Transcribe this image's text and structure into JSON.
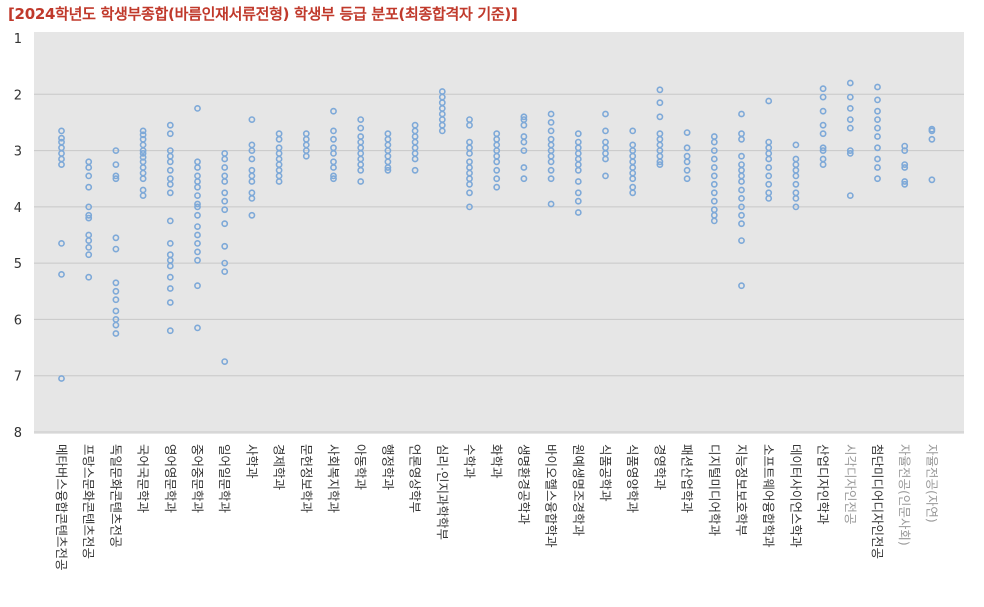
{
  "chart_data": {
    "type": "scatter",
    "title": "[2024학년도 학생부종합(바름인재서류전형) 학생부 등급 분포(최종합격자 기준)]",
    "ylim": [
      1,
      8
    ],
    "y_ticks": [
      "1",
      "2",
      "3",
      "4",
      "5",
      "6",
      "7",
      "8"
    ],
    "y_inverted": true,
    "grid": true,
    "colors": {
      "point": "#7ea9d8",
      "plot_bg": "#e6e6e6",
      "grid": "#c8c8c8",
      "title": "#c0392b",
      "label": "#333333",
      "label_muted": "#999999"
    },
    "categories": [
      "메타버스융합콘텐츠전공",
      "프랑스문화콘텐츠전공",
      "독일문화콘텐츠전공",
      "국어국문학과",
      "영어영문학과",
      "중어중문학과",
      "일어일문학과",
      "사학과",
      "경제학과",
      "문헌정보학과",
      "사회복지학과",
      "아동학과",
      "행정학과",
      "언론영상학부",
      "심리·인지과학학부",
      "수학과",
      "화학과",
      "생명환경공학과",
      "바이오헬스융합학과",
      "원예생명조경학과",
      "식품공학과",
      "식품영양학과",
      "경영학과",
      "패션산업학과",
      "디지털미디어학과",
      "지능정보보호학부",
      "소프트웨어융합학과",
      "데이터사이언스학과",
      "산업디자인학과",
      "시각디자인전공",
      "첨단미디어디자인전공",
      "자율전공(인문사회)",
      "자율전공(자연)"
    ],
    "muted_categories": [
      29,
      31,
      32
    ],
    "values": [
      [
        2.65,
        2.78,
        2.85,
        2.95,
        3.05,
        3.15,
        3.25,
        4.65,
        5.2,
        7.05
      ],
      [
        3.2,
        3.3,
        3.45,
        3.65,
        4.0,
        4.15,
        4.2,
        4.5,
        4.6,
        4.72,
        4.85,
        5.25
      ],
      [
        3.0,
        3.25,
        3.45,
        3.5,
        4.55,
        4.75,
        5.35,
        5.5,
        5.65,
        5.85,
        6.0,
        6.1,
        6.25
      ],
      [
        2.65,
        2.72,
        2.8,
        2.9,
        3.0,
        3.05,
        3.12,
        3.2,
        3.3,
        3.4,
        3.5,
        3.7,
        3.8
      ],
      [
        2.55,
        2.7,
        3.0,
        3.1,
        3.2,
        3.35,
        3.5,
        3.6,
        3.75,
        4.25,
        4.65,
        4.85,
        4.95,
        5.05,
        5.25,
        5.45,
        5.7,
        6.2
      ],
      [
        2.25,
        3.2,
        3.3,
        3.45,
        3.55,
        3.65,
        3.8,
        3.95,
        4.0,
        4.15,
        4.35,
        4.5,
        4.65,
        4.8,
        4.95,
        5.4,
        6.15
      ],
      [
        3.05,
        3.15,
        3.3,
        3.45,
        3.55,
        3.75,
        3.9,
        4.05,
        4.3,
        4.7,
        5.0,
        5.15,
        6.75
      ],
      [
        2.45,
        2.9,
        3.0,
        3.15,
        3.35,
        3.45,
        3.55,
        3.75,
        3.85,
        4.15
      ],
      [
        2.7,
        2.8,
        2.95,
        3.05,
        3.15,
        3.25,
        3.35,
        3.45,
        3.55
      ],
      [
        2.7,
        2.8,
        2.9,
        3.0,
        3.1
      ],
      [
        2.3,
        2.65,
        2.8,
        2.95,
        3.05,
        3.2,
        3.3,
        3.45,
        3.5
      ],
      [
        2.45,
        2.6,
        2.75,
        2.85,
        2.95,
        3.05,
        3.15,
        3.25,
        3.35,
        3.55
      ],
      [
        2.7,
        2.8,
        2.9,
        3.0,
        3.1,
        3.2,
        3.3,
        3.35
      ],
      [
        2.55,
        2.65,
        2.75,
        2.85,
        2.95,
        3.05,
        3.15,
        3.35
      ],
      [
        1.95,
        2.05,
        2.15,
        2.25,
        2.35,
        2.45,
        2.55,
        2.65
      ],
      [
        2.45,
        2.55,
        2.85,
        2.95,
        3.05,
        3.2,
        3.3,
        3.4,
        3.5,
        3.6,
        3.75,
        4.0
      ],
      [
        2.7,
        2.8,
        2.9,
        3.0,
        3.1,
        3.2,
        3.35,
        3.5,
        3.65
      ],
      [
        2.4,
        2.45,
        2.55,
        2.75,
        2.85,
        3.0,
        3.3,
        3.5
      ],
      [
        2.35,
        2.5,
        2.65,
        2.8,
        2.9,
        3.0,
        3.1,
        3.2,
        3.35,
        3.5,
        3.95
      ],
      [
        2.7,
        2.85,
        2.95,
        3.05,
        3.15,
        3.25,
        3.35,
        3.55,
        3.75,
        3.9,
        4.1
      ],
      [
        2.35,
        2.65,
        2.85,
        2.95,
        3.05,
        3.15,
        3.45
      ],
      [
        2.65,
        2.9,
        3.0,
        3.1,
        3.2,
        3.3,
        3.4,
        3.5,
        3.65,
        3.75
      ],
      [
        1.92,
        2.15,
        2.4,
        2.7,
        2.8,
        2.9,
        3.0,
        3.1,
        3.2,
        3.25
      ],
      [
        2.68,
        2.95,
        3.1,
        3.2,
        3.35,
        3.5
      ],
      [
        2.75,
        2.85,
        3.0,
        3.15,
        3.3,
        3.45,
        3.6,
        3.75,
        3.9,
        4.05,
        4.15,
        4.25
      ],
      [
        2.35,
        2.7,
        2.8,
        3.1,
        3.25,
        3.35,
        3.45,
        3.55,
        3.7,
        3.85,
        4.0,
        4.15,
        4.3,
        4.6,
        5.4
      ],
      [
        2.12,
        2.85,
        2.95,
        3.05,
        3.15,
        3.3,
        3.45,
        3.6,
        3.75,
        3.85
      ],
      [
        2.9,
        3.15,
        3.25,
        3.35,
        3.45,
        3.6,
        3.75,
        3.85,
        4.0
      ],
      [
        1.9,
        2.05,
        2.3,
        2.55,
        2.7,
        2.95,
        3.0,
        3.15,
        3.25
      ],
      [
        1.8,
        2.05,
        2.25,
        2.45,
        2.6,
        3.0,
        3.05,
        3.8
      ],
      [
        1.87,
        2.1,
        2.3,
        2.45,
        2.6,
        2.75,
        2.95,
        3.15,
        3.3,
        3.5
      ],
      [
        2.92,
        3.0,
        3.25,
        3.3,
        3.55,
        3.6
      ],
      [
        2.62,
        2.65,
        2.8,
        3.52
      ]
    ]
  }
}
